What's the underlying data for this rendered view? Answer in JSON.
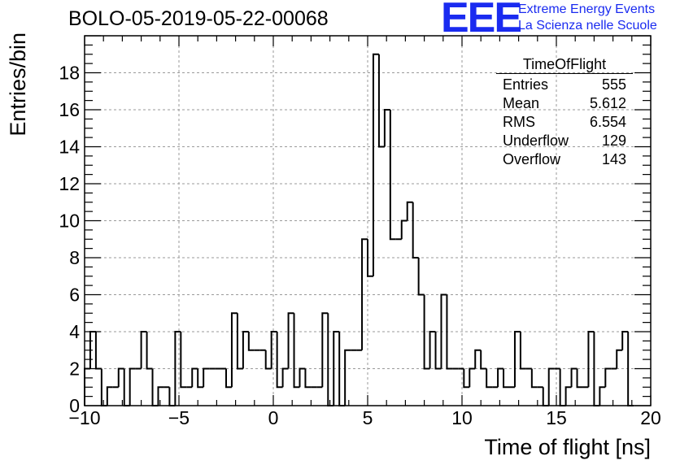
{
  "run_title": "BOLO-05-2019-05-22-00068",
  "logo": {
    "letters": "EEE",
    "line1": "Extreme Energy Events",
    "line2": "La Scienza nelle Scuole",
    "color": "#1a2bf0"
  },
  "stats_box": {
    "title": "TimeOfFlight",
    "rows": [
      {
        "label": "Entries",
        "value": "555"
      },
      {
        "label": "Mean",
        "value": "5.612"
      },
      {
        "label": "RMS",
        "value": "6.554"
      },
      {
        "label": "Underflow",
        "value": "129"
      },
      {
        "label": "Overflow",
        "value": "143"
      }
    ]
  },
  "chart_data": {
    "type": "histogram",
    "title": "BOLO-05-2019-05-22-00068",
    "xlabel": "Time of flight [ns]",
    "ylabel": "Entries/bin",
    "xlim": [
      -10,
      20
    ],
    "ylim": [
      0,
      20
    ],
    "grid": true,
    "bin_width": 0.3,
    "x_ticks": [
      -10,
      -5,
      0,
      5,
      10,
      15,
      20
    ],
    "x_tick_labels": [
      "−10",
      "−5",
      "0",
      "5",
      "10",
      "15",
      "20"
    ],
    "y_ticks": [
      0,
      2,
      4,
      6,
      8,
      10,
      12,
      14,
      16,
      18
    ],
    "y_tick_labels": [
      "0",
      "2",
      "4",
      "6",
      "8",
      "10",
      "12",
      "14",
      "16",
      "18"
    ],
    "bin_edges_start": -10,
    "values": [
      2,
      4,
      2,
      0,
      1,
      1,
      2,
      0,
      2,
      2,
      4,
      2,
      0,
      1,
      1,
      0,
      4,
      1,
      1,
      2,
      1,
      2,
      2,
      2,
      2,
      1,
      5,
      2,
      4,
      3,
      3,
      3,
      2,
      4,
      1,
      2,
      5,
      1,
      2,
      1,
      1,
      1,
      5,
      0,
      4,
      0,
      3,
      3,
      3,
      9,
      7,
      19,
      14,
      16,
      9,
      9,
      10,
      11,
      8,
      6,
      2,
      4,
      2,
      6,
      2,
      2,
      2,
      1,
      2,
      3,
      2,
      1,
      1,
      2,
      1,
      1,
      4,
      2,
      2,
      1,
      1,
      0,
      2,
      2,
      0,
      1,
      2,
      1,
      1,
      4,
      0,
      1,
      2,
      2,
      3,
      4,
      0
    ]
  }
}
